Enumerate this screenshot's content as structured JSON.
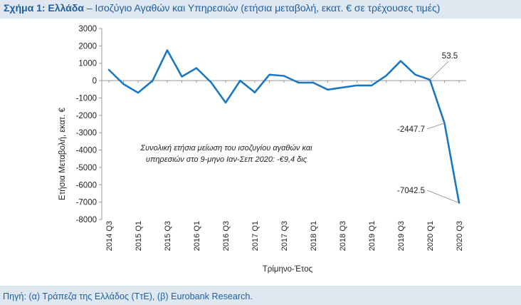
{
  "header": {
    "title_bold": "Σχήμα 1: Ελλάδα",
    "title_rest": " – Ισοζύγιο Αγαθών και Υπηρεσιών (ετήσια μεταβολή, εκατ. € σε τρέχουσες τιμές)"
  },
  "footer": {
    "source": "Πηγή: (α) Τράπεζα της Ελλάδος (ΤτΕ), (β) Eurobank Research."
  },
  "chart_data": {
    "type": "line",
    "color": "#1a78c2",
    "ylabel": "Ετήσια Μεταβολή, εκατ. €",
    "xlabel": "Τρίμηνο-Έτος",
    "ylim": [
      -8000,
      3000
    ],
    "yticks": [
      3000,
      2000,
      1000,
      0,
      -1000,
      -2000,
      -3000,
      -4000,
      -5000,
      -6000,
      -7000,
      -8000
    ],
    "grid": false,
    "x_tick_labels": [
      "2014 Q3",
      "2015 Q1",
      "2015 Q3",
      "2016 Q1",
      "2016 Q3",
      "2017 Q1",
      "2017 Q3",
      "2018 Q1",
      "2018 Q3",
      "2019 Q1",
      "2019 Q3",
      "2020 Q1",
      "2020 Q3"
    ],
    "categories": [
      "2014 Q3",
      "2014 Q4",
      "2015 Q1",
      "2015 Q2",
      "2015 Q3",
      "2015 Q4",
      "2016 Q1",
      "2016 Q2",
      "2016 Q3",
      "2016 Q4",
      "2017 Q1",
      "2017 Q2",
      "2017 Q3",
      "2017 Q4",
      "2018 Q1",
      "2018 Q2",
      "2018 Q3",
      "2018 Q4",
      "2019 Q1",
      "2019 Q2",
      "2019 Q3",
      "2019 Q4",
      "2020 Q1",
      "2020 Q2",
      "2020 Q3"
    ],
    "values": [
      620,
      -200,
      -700,
      0,
      1750,
      230,
      720,
      -100,
      -1270,
      0,
      -680,
      340,
      270,
      -120,
      -120,
      -520,
      -400,
      -280,
      -280,
      280,
      1130,
      340,
      53.5,
      -2447.7,
      -7042.5
    ],
    "point_labels": [
      {
        "index": 22,
        "text": "53.5"
      },
      {
        "index": 23,
        "text": "-2447.7"
      },
      {
        "index": 24,
        "text": "-7042.5"
      }
    ],
    "annotation": {
      "line1": "Συνολική ετήσια μείωση του ισοζυγίου αγαθών και",
      "line2": "υπηρεσιών στο 9-μηνο Ιαν-Σεπ 2020: -€9,4 δις"
    }
  }
}
